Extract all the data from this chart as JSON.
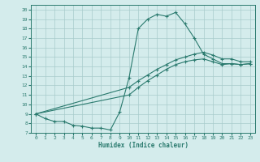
{
  "xlabel": "Humidex (Indice chaleur)",
  "bg_color": "#d4ecec",
  "line_color": "#2a7a6e",
  "grid_color": "#a8cccc",
  "xlim": [
    -0.5,
    23.5
  ],
  "ylim": [
    7,
    20.5
  ],
  "xticks": [
    0,
    1,
    2,
    3,
    4,
    5,
    6,
    7,
    8,
    9,
    10,
    11,
    12,
    13,
    14,
    15,
    16,
    17,
    18,
    19,
    20,
    21,
    22,
    23
  ],
  "yticks": [
    7,
    8,
    9,
    10,
    11,
    12,
    13,
    14,
    15,
    16,
    17,
    18,
    19,
    20
  ],
  "line1_x": [
    0,
    1,
    2,
    3,
    4,
    5,
    6,
    7,
    8,
    9,
    10,
    11,
    12,
    13,
    14,
    15,
    16,
    17,
    18,
    19,
    20,
    21,
    22,
    23
  ],
  "line1_y": [
    9.0,
    8.5,
    8.2,
    8.2,
    7.8,
    7.7,
    7.5,
    7.5,
    7.3,
    9.2,
    12.8,
    18.0,
    19.0,
    19.5,
    19.3,
    19.7,
    18.5,
    17.0,
    15.3,
    14.8,
    14.3,
    14.3,
    14.2,
    14.3
  ],
  "line2_x": [
    0,
    10,
    11,
    12,
    13,
    14,
    15,
    16,
    17,
    18,
    19,
    20,
    21,
    22,
    23
  ],
  "line2_y": [
    9.0,
    11.0,
    11.8,
    12.5,
    13.1,
    13.7,
    14.2,
    14.5,
    14.7,
    14.8,
    14.5,
    14.2,
    14.3,
    14.2,
    14.3
  ],
  "line3_x": [
    0,
    10,
    11,
    12,
    13,
    14,
    15,
    16,
    17,
    18,
    19,
    20,
    21,
    22,
    23
  ],
  "line3_y": [
    9.0,
    11.8,
    12.5,
    13.1,
    13.7,
    14.2,
    14.7,
    15.0,
    15.3,
    15.5,
    15.2,
    14.8,
    14.8,
    14.5,
    14.5
  ]
}
